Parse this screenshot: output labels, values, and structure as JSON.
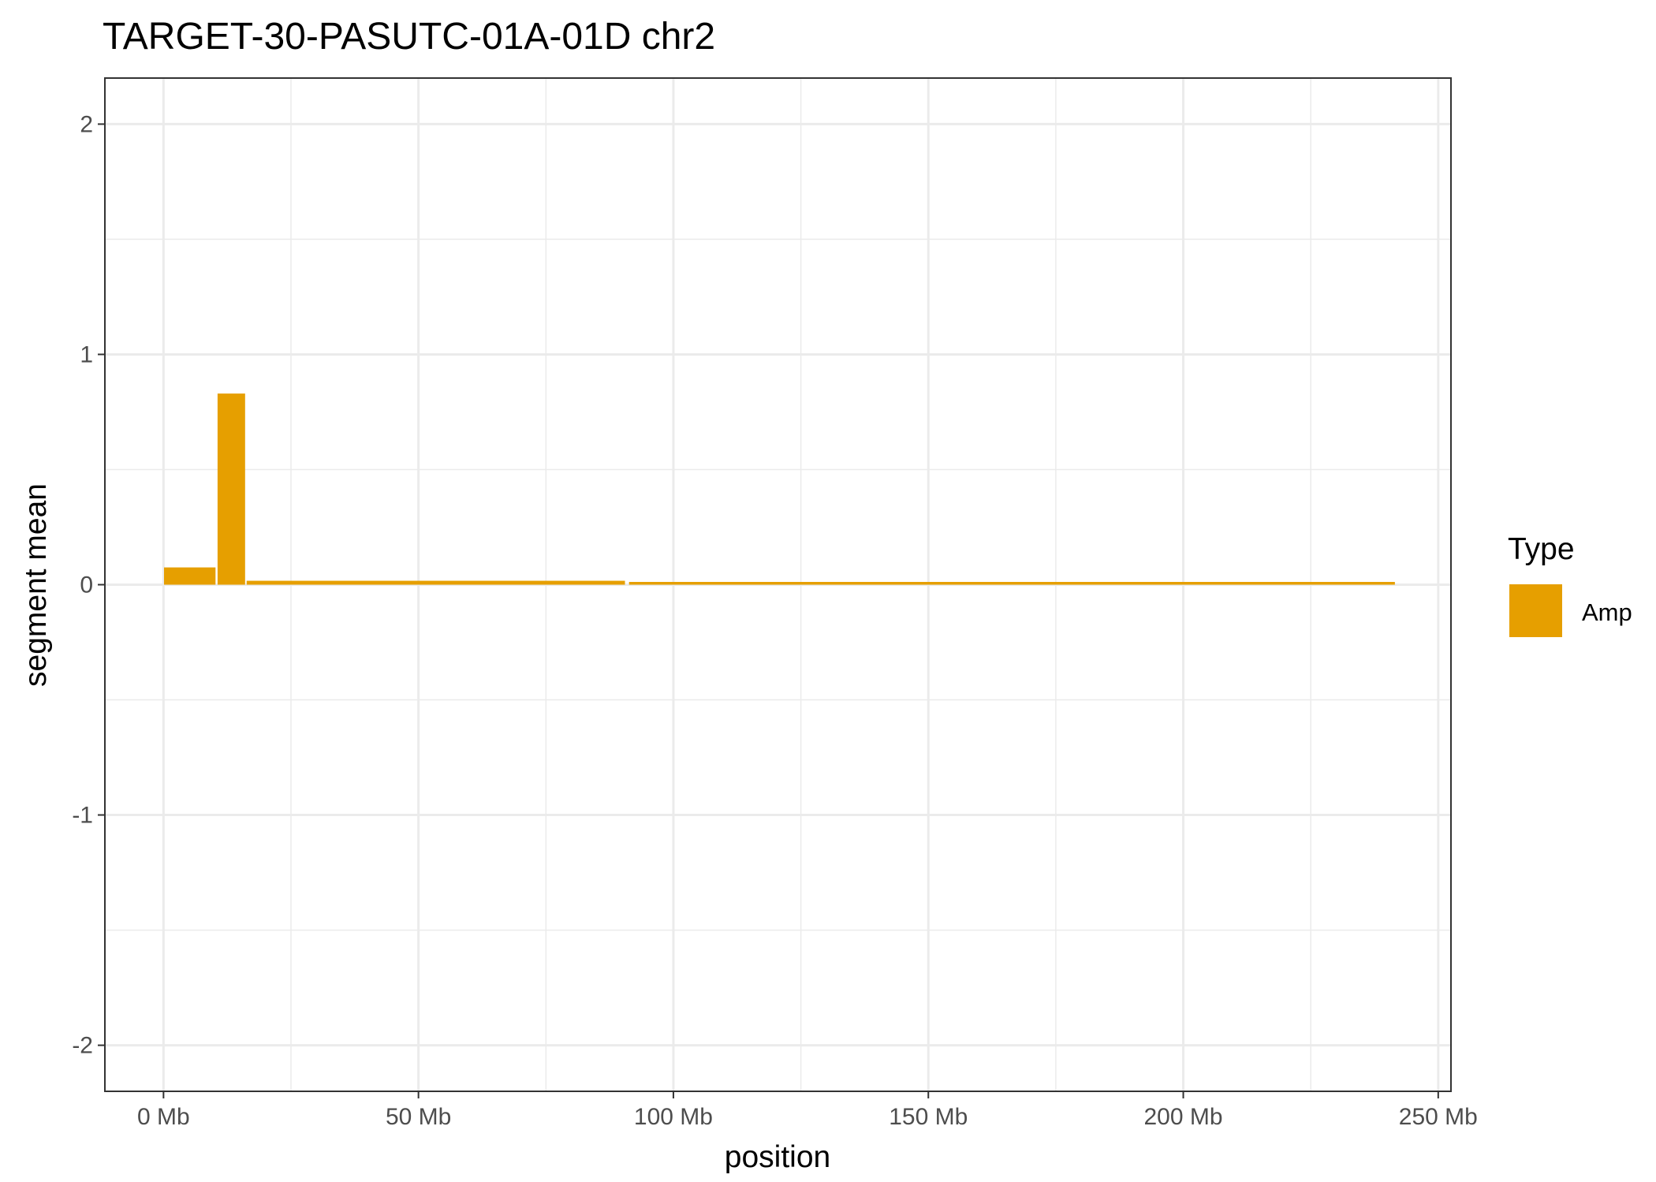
{
  "chart_data": {
    "type": "bar",
    "title": "TARGET-30-PASUTC-01A-01D chr2",
    "xlabel": "position",
    "ylabel": "segment mean",
    "x_unit": "Mb",
    "xlim": [
      -11.5,
      252.5
    ],
    "ylim": [
      -2.2,
      2.2
    ],
    "x_ticks": [
      0,
      50,
      100,
      150,
      200,
      250
    ],
    "x_tick_labels": [
      "0 Mb",
      "50 Mb",
      "100 Mb",
      "150 Mb",
      "200 Mb",
      "250 Mb"
    ],
    "y_ticks": [
      -2,
      -1,
      0,
      1,
      2
    ],
    "y_tick_labels": [
      "-2",
      "-1",
      "0",
      "1",
      "2"
    ],
    "grid": true,
    "legend": {
      "title": "Type",
      "placement": "right",
      "entries": [
        {
          "label": "Amp",
          "color": "#E69F00"
        }
      ]
    },
    "series": [
      {
        "name": "Amp",
        "color": "#E69F00",
        "segments": [
          {
            "start": 0.1,
            "end": 10.2,
            "value": 0.075
          },
          {
            "start": 10.6,
            "end": 16.0,
            "value": 0.83
          },
          {
            "start": 16.3,
            "end": 90.5,
            "value": 0.017
          },
          {
            "start": 91.3,
            "end": 241.5,
            "value": 0.012
          }
        ]
      }
    ]
  }
}
